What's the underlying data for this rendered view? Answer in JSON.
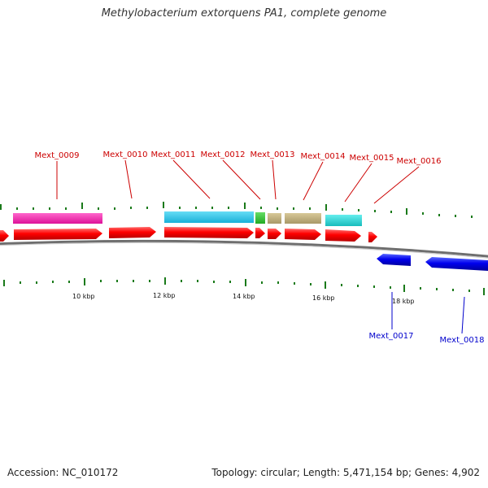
{
  "title": "Methylobacterium extorquens PA1, complete genome",
  "footer": {
    "accession": "Accession: NC_010172",
    "summary": "Topology: circular; Length: 5,471,154 bp; Genes: 4,902"
  },
  "colors": {
    "forward_gene": "#ff0000",
    "reverse_gene": "#0000ee",
    "forward_label": "#cc0000",
    "reverse_label": "#0000cc",
    "tick": "#1a7a1a",
    "backbone": "#999999"
  },
  "scale_labels": [
    "10 kbp",
    "12 kbp",
    "14 kbp",
    "16 kbp",
    "18 kbp"
  ],
  "forward_labels": [
    "Mext_0009",
    "Mext_0010",
    "Mext_0011",
    "Mext_0012",
    "Mext_0013",
    "Mext_0014",
    "Mext_0015",
    "Mext_0016"
  ],
  "reverse_labels": [
    "Mext_0017",
    "Mext_0018"
  ],
  "cog_colors": [
    "#ee1199",
    "#22bbdd",
    "#33bb33",
    "#bbaa77",
    "#22cccc"
  ]
}
